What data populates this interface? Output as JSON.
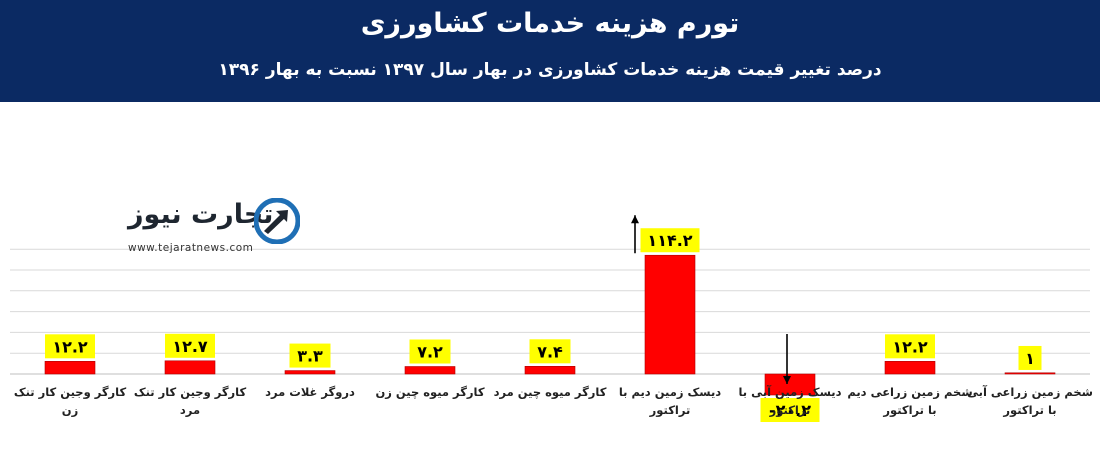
{
  "chart_data": {
    "type": "bar",
    "title": "تورم هزینه خدمات کشاورزی",
    "subtitle": "درصد تغییر قیمت هزینه خدمات کشاورزی در بهار سال ۱۳۹۷ نسبت به بهار ۱۳۹۶",
    "categories": [
      "شخم زمین زراعی آبی با تراکتور",
      "شخم زمین زراعی دیم با تراکتور",
      "دیسک زمین آبی با تراکتور",
      "دیسک زمین دیم با تراکتور",
      "کارگر میوه چین مرد",
      "کارگر میوه چین زن",
      "دروگر غلات مرد",
      "کارگر وجین کار تنک مرد",
      "کارگر وجین کار تنک زن"
    ],
    "values": [
      1,
      12.2,
      -20.2,
      114.2,
      7.4,
      7.2,
      3.3,
      12.7,
      12.2
    ],
    "value_labels": [
      "۱",
      "۱۲.۲",
      "-۲۰.۲",
      "۱۱۴.۲",
      "۷.۴",
      "۷.۲",
      "۳.۳",
      "۱۲.۷",
      "۱۲.۲"
    ],
    "ylim": [
      -25,
      140
    ],
    "grid": true,
    "bar_color": "#ff0000",
    "label_color": "#ffff00"
  },
  "watermark": {
    "name": "تجارت نیوز",
    "url": "www.tejaratnews.com",
    "colors": {
      "dark": "#1e2630",
      "blue": "#1f6fb5"
    }
  },
  "colors": {
    "header": "#0b2a63",
    "grid": "#d9d9d9",
    "axis": "#bfbfbf"
  }
}
